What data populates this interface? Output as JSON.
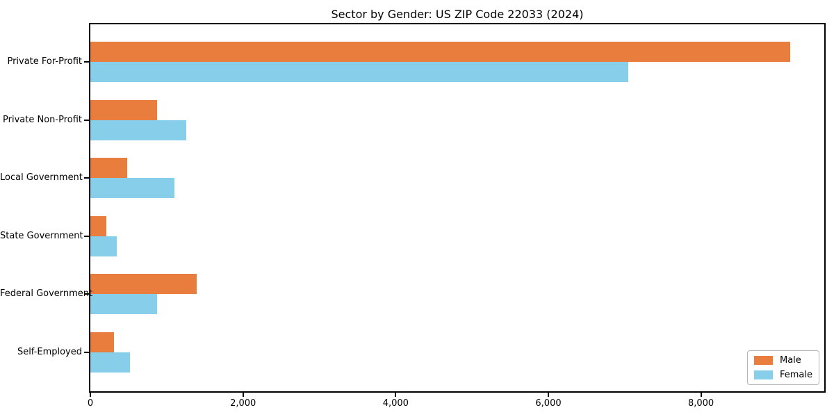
{
  "chart_data": {
    "type": "bar",
    "orientation": "horizontal",
    "title": "Sector by Gender: US ZIP Code 22033 (2024)",
    "categories": [
      "Private For-Profit",
      "Private Non-Profit",
      "Local Government",
      "State Government",
      "Federal Government",
      "Self-Employed"
    ],
    "series": [
      {
        "name": "Male",
        "color": "#E87D3E",
        "values": [
          9170,
          870,
          480,
          210,
          1395,
          310
        ]
      },
      {
        "name": "Female",
        "color": "#87CEEB",
        "values": [
          7050,
          1255,
          1100,
          345,
          870,
          515
        ]
      }
    ],
    "xlim": [
      0,
      9615
    ],
    "xticks": [
      0,
      2000,
      4000,
      6000,
      8000
    ],
    "xtick_labels": [
      "0",
      "2,000",
      "4,000",
      "6,000",
      "8,000"
    ],
    "xlabel": "",
    "ylabel": "",
    "grid": false,
    "legend": {
      "position": "lower right",
      "entries": [
        "Male",
        "Female"
      ]
    }
  }
}
